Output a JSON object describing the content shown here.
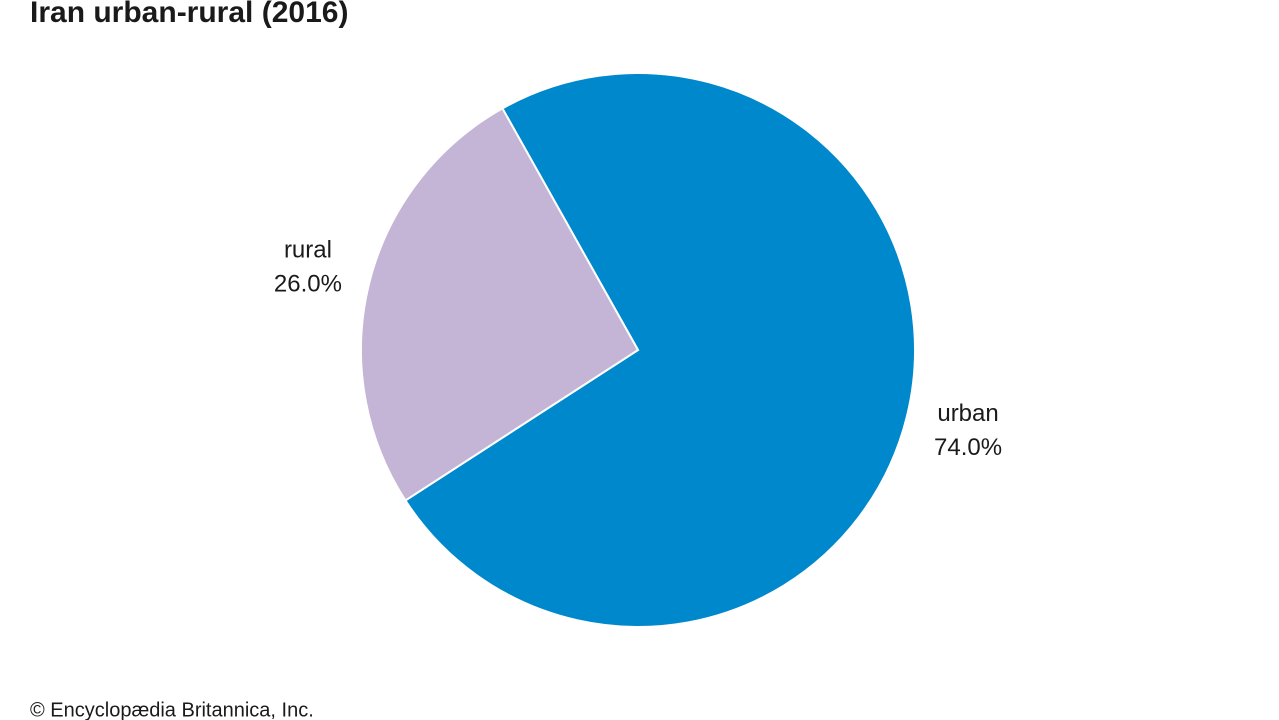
{
  "chart_data": {
    "type": "pie",
    "title": "Iran urban-rural (2016)",
    "categories": [
      "urban",
      "rural"
    ],
    "values": [
      74,
      26
    ],
    "value_labels": [
      "74.0%",
      "26.0%"
    ],
    "colors": [
      "#0088cc",
      "#c4b4d6"
    ],
    "credit": "© Encyclopædia Britannica, Inc."
  }
}
